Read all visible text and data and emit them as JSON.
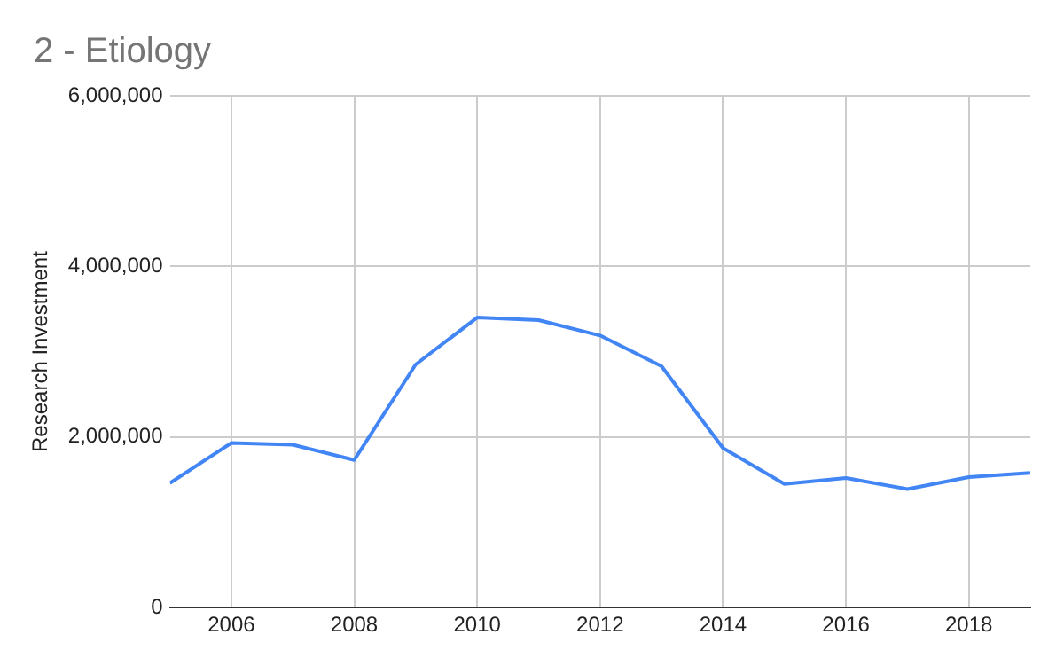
{
  "chart_data": {
    "type": "line",
    "title": "2 - Etiology",
    "ylabel": "Research Investment",
    "x": [
      2005,
      2006,
      2007,
      2008,
      2009,
      2010,
      2011,
      2012,
      2013,
      2014,
      2015,
      2016,
      2017,
      2018,
      2019
    ],
    "series": [
      {
        "color": "#4285f4",
        "values": [
          1460000,
          1930000,
          1910000,
          1730000,
          2850000,
          3400000,
          3370000,
          3190000,
          2830000,
          1870000,
          1450000,
          1520000,
          1390000,
          1530000,
          1580000
        ]
      }
    ],
    "xlim": [
      2005,
      2019
    ],
    "xticks": [
      2006,
      2008,
      2010,
      2012,
      2014,
      2016,
      2018
    ],
    "ylim": [
      0,
      6000000
    ],
    "yticks": [
      {
        "value": 0,
        "label": "0"
      },
      {
        "value": 2000000,
        "label": "2,000,000"
      },
      {
        "value": 4000000,
        "label": "4,000,000"
      },
      {
        "value": 6000000,
        "label": "6,000,000"
      }
    ],
    "grid": true,
    "legend": false,
    "marker": "none",
    "line_style": "solid"
  }
}
